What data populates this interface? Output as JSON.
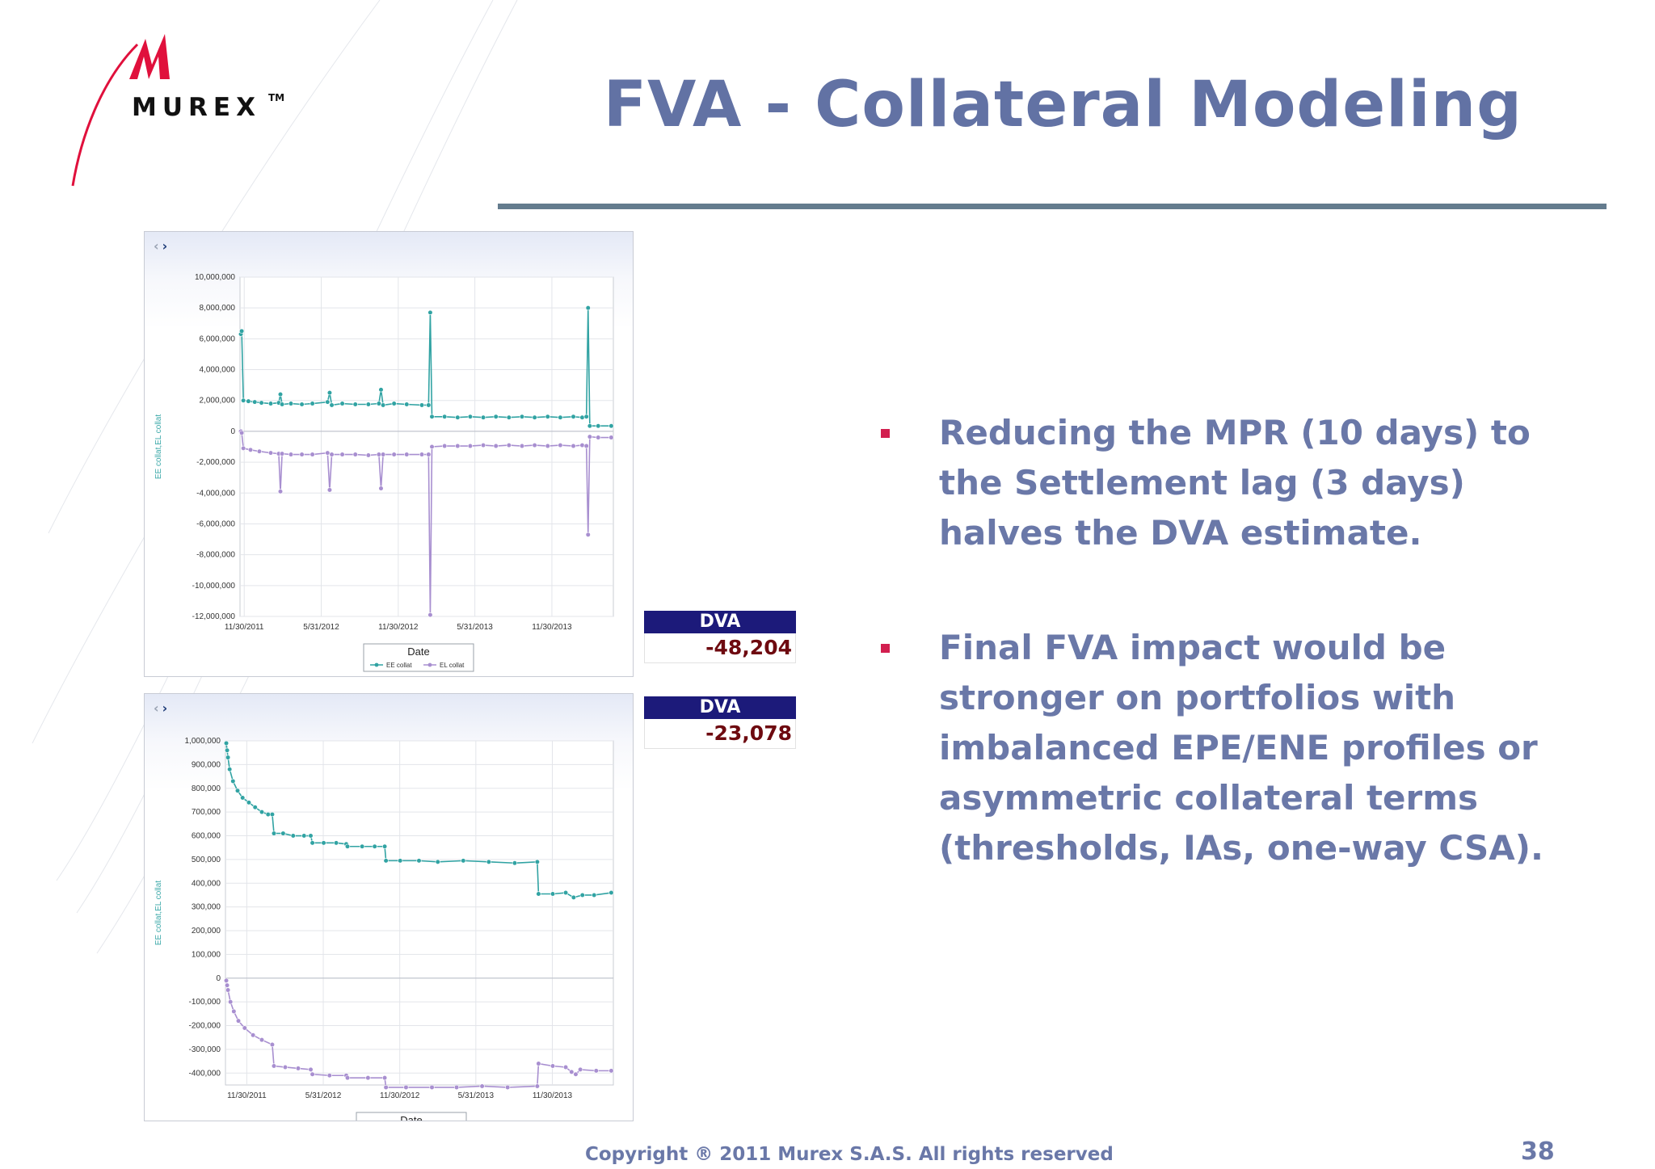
{
  "slide": {
    "title": "FVA - Collateral Modeling",
    "logo": {
      "text": "MUREX",
      "trademark": "TM"
    },
    "bullets": [
      "Reducing the MPR (10 days) to the Settlement lag (3 days) halves the DVA estimate.",
      "Final FVA impact would be stronger on portfolios with imbalanced EPE/ENE profiles or asymmetric collateral terms (thresholds, IAs, one-way CSA)."
    ],
    "footer": "Copyright ® 2011 Murex S.A.S. All rights reserved",
    "page_number": "38",
    "colors": {
      "title": "#6272a4",
      "bullet_marker": "#d21f4f",
      "ee_series": "#31a3a3",
      "el_series": "#a88fd0",
      "dva_header": "#1c1a7a"
    }
  },
  "dva": [
    {
      "label": "DVA",
      "value": "-48,204"
    },
    {
      "label": "DVA",
      "value": "-23,078"
    }
  ],
  "nav": {
    "prev_icon": "chevron-left-icon",
    "next_icon": "chevron-right-icon",
    "prev": "‹",
    "next": "›"
  },
  "chart_data": [
    {
      "type": "line",
      "xlabel": "Date",
      "ylabel": "EE collat,EL collat",
      "ylim": [
        -12000000,
        10000000
      ],
      "yticks": [
        10000000,
        8000000,
        6000000,
        4000000,
        2000000,
        0,
        -2000000,
        -4000000,
        -6000000,
        -8000000,
        -10000000,
        -12000000
      ],
      "ytick_labels": [
        "10,000,000",
        "8,000,000",
        "6,000,000",
        "4,000,000",
        "2,000,000",
        "0",
        "-2,000,000",
        "-4,000,000",
        "-6,000,000",
        "-8,000,000",
        "-10,000,000",
        "-12,000,000"
      ],
      "xlim": [
        "2011-11-20",
        "2014-04-25"
      ],
      "xticks": [
        "2011-11-30",
        "2012-05-31",
        "2012-11-30",
        "2013-05-31",
        "2013-11-30"
      ],
      "xtick_labels": [
        "11/30/2011",
        "5/31/2012",
        "11/30/2012",
        "5/31/2013",
        "11/30/2013"
      ],
      "grid": true,
      "legend_position": "bottom",
      "series": [
        {
          "name": "EE collat",
          "points": [
            [
              "2011-11-22",
              6300000
            ],
            [
              "2011-11-24",
              6500000
            ],
            [
              "2011-11-28",
              2000000
            ],
            [
              "2011-12-10",
              1950000
            ],
            [
              "2011-12-25",
              1900000
            ],
            [
              "2012-01-10",
              1850000
            ],
            [
              "2012-02-01",
              1800000
            ],
            [
              "2012-02-20",
              1850000
            ],
            [
              "2012-02-24",
              2400000
            ],
            [
              "2012-02-28",
              1750000
            ],
            [
              "2012-03-20",
              1800000
            ],
            [
              "2012-04-15",
              1750000
            ],
            [
              "2012-05-10",
              1800000
            ],
            [
              "2012-06-15",
              1900000
            ],
            [
              "2012-06-20",
              2500000
            ],
            [
              "2012-06-25",
              1700000
            ],
            [
              "2012-07-20",
              1800000
            ],
            [
              "2012-08-20",
              1750000
            ],
            [
              "2012-09-20",
              1750000
            ],
            [
              "2012-10-15",
              1800000
            ],
            [
              "2012-10-20",
              2700000
            ],
            [
              "2012-10-25",
              1700000
            ],
            [
              "2012-11-20",
              1800000
            ],
            [
              "2012-12-20",
              1750000
            ],
            [
              "2013-01-25",
              1700000
            ],
            [
              "2013-02-10",
              1700000
            ],
            [
              "2013-02-14",
              7700000
            ],
            [
              "2013-02-18",
              950000
            ],
            [
              "2013-03-20",
              950000
            ],
            [
              "2013-04-20",
              900000
            ],
            [
              "2013-05-20",
              950000
            ],
            [
              "2013-06-20",
              900000
            ],
            [
              "2013-07-20",
              950000
            ],
            [
              "2013-08-20",
              900000
            ],
            [
              "2013-09-20",
              950000
            ],
            [
              "2013-10-20",
              900000
            ],
            [
              "2013-11-20",
              950000
            ],
            [
              "2013-12-20",
              900000
            ],
            [
              "2014-01-20",
              950000
            ],
            [
              "2014-02-10",
              900000
            ],
            [
              "2014-02-20",
              950000
            ],
            [
              "2014-02-24",
              8000000
            ],
            [
              "2014-02-28",
              350000
            ],
            [
              "2014-03-20",
              350000
            ],
            [
              "2014-04-20",
              350000
            ]
          ]
        },
        {
          "name": "EL collat",
          "points": [
            [
              "2011-11-22",
              0
            ],
            [
              "2011-11-24",
              -100000
            ],
            [
              "2011-11-28",
              -1100000
            ],
            [
              "2011-12-15",
              -1200000
            ],
            [
              "2012-01-05",
              -1300000
            ],
            [
              "2012-02-01",
              -1400000
            ],
            [
              "2012-02-20",
              -1450000
            ],
            [
              "2012-02-24",
              -3900000
            ],
            [
              "2012-02-28",
              -1450000
            ],
            [
              "2012-03-20",
              -1500000
            ],
            [
              "2012-04-15",
              -1500000
            ],
            [
              "2012-05-10",
              -1500000
            ],
            [
              "2012-06-15",
              -1400000
            ],
            [
              "2012-06-20",
              -3800000
            ],
            [
              "2012-06-25",
              -1500000
            ],
            [
              "2012-07-20",
              -1500000
            ],
            [
              "2012-08-20",
              -1500000
            ],
            [
              "2012-09-20",
              -1550000
            ],
            [
              "2012-10-15",
              -1500000
            ],
            [
              "2012-10-20",
              -3700000
            ],
            [
              "2012-10-25",
              -1500000
            ],
            [
              "2012-11-20",
              -1500000
            ],
            [
              "2012-12-20",
              -1500000
            ],
            [
              "2013-01-25",
              -1500000
            ],
            [
              "2013-02-10",
              -1500000
            ],
            [
              "2013-02-14",
              -11900000
            ],
            [
              "2013-02-18",
              -1000000
            ],
            [
              "2013-03-20",
              -950000
            ],
            [
              "2013-04-20",
              -950000
            ],
            [
              "2013-05-20",
              -950000
            ],
            [
              "2013-06-20",
              -900000
            ],
            [
              "2013-07-20",
              -950000
            ],
            [
              "2013-08-20",
              -900000
            ],
            [
              "2013-09-20",
              -950000
            ],
            [
              "2013-10-20",
              -900000
            ],
            [
              "2013-11-20",
              -950000
            ],
            [
              "2013-12-20",
              -900000
            ],
            [
              "2014-01-20",
              -950000
            ],
            [
              "2014-02-10",
              -900000
            ],
            [
              "2014-02-20",
              -950000
            ],
            [
              "2014-02-24",
              -6700000
            ],
            [
              "2014-02-28",
              -350000
            ],
            [
              "2014-03-20",
              -400000
            ],
            [
              "2014-04-20",
              -400000
            ]
          ]
        }
      ]
    },
    {
      "type": "line",
      "xlabel": "Date",
      "ylabel": "EE collat,EL collat",
      "ylim": [
        -450000,
        1000000
      ],
      "yticks": [
        1000000,
        900000,
        800000,
        700000,
        600000,
        500000,
        400000,
        300000,
        200000,
        100000,
        0,
        -100000,
        -200000,
        -300000,
        -400000
      ],
      "ytick_labels": [
        "1,000,000",
        "900,000",
        "800,000",
        "700,000",
        "600,000",
        "500,000",
        "400,000",
        "300,000",
        "200,000",
        "100,000",
        "0",
        "-100,000",
        "-200,000",
        "-300,000",
        "-400,000"
      ],
      "xlim": [
        "2011-10-10",
        "2014-04-25"
      ],
      "xticks": [
        "2011-11-30",
        "2012-05-31",
        "2012-11-30",
        "2013-05-31",
        "2013-11-30"
      ],
      "xtick_labels": [
        "11/30/2011",
        "5/31/2012",
        "11/30/2012",
        "5/31/2013",
        "11/30/2013"
      ],
      "grid": true,
      "legend_position": "bottom",
      "series": [
        {
          "name": "EE collat",
          "points": [
            [
              "2011-10-12",
              990000
            ],
            [
              "2011-10-14",
              960000
            ],
            [
              "2011-10-16",
              930000
            ],
            [
              "2011-10-20",
              880000
            ],
            [
              "2011-10-28",
              830000
            ],
            [
              "2011-11-08",
              790000
            ],
            [
              "2011-11-20",
              760000
            ],
            [
              "2011-12-05",
              740000
            ],
            [
              "2011-12-20",
              720000
            ],
            [
              "2012-01-05",
              700000
            ],
            [
              "2012-01-20",
              690000
            ],
            [
              "2012-01-30",
              690000
            ],
            [
              "2012-02-03",
              610000
            ],
            [
              "2012-02-25",
              610000
            ],
            [
              "2012-03-20",
              600000
            ],
            [
              "2012-04-15",
              600000
            ],
            [
              "2012-05-01",
              600000
            ],
            [
              "2012-05-05",
              570000
            ],
            [
              "2012-06-01",
              570000
            ],
            [
              "2012-07-01",
              570000
            ],
            [
              "2012-07-25",
              565000
            ],
            [
              "2012-07-28",
              555000
            ],
            [
              "2012-09-01",
              555000
            ],
            [
              "2012-10-01",
              555000
            ],
            [
              "2012-10-25",
              555000
            ],
            [
              "2012-10-28",
              495000
            ],
            [
              "2012-12-01",
              495000
            ],
            [
              "2013-01-15",
              495000
            ],
            [
              "2013-03-01",
              490000
            ],
            [
              "2013-05-01",
              495000
            ],
            [
              "2013-07-01",
              490000
            ],
            [
              "2013-09-01",
              485000
            ],
            [
              "2013-10-25",
              490000
            ],
            [
              "2013-10-28",
              355000
            ],
            [
              "2013-12-01",
              355000
            ],
            [
              "2014-01-01",
              360000
            ],
            [
              "2014-01-20",
              340000
            ],
            [
              "2014-02-10",
              350000
            ],
            [
              "2014-03-10",
              350000
            ],
            [
              "2014-04-20",
              360000
            ]
          ]
        },
        {
          "name": "EL collat",
          "points": [
            [
              "2011-10-12",
              -10000
            ],
            [
              "2011-10-14",
              -30000
            ],
            [
              "2011-10-16",
              -50000
            ],
            [
              "2011-10-22",
              -100000
            ],
            [
              "2011-10-30",
              -140000
            ],
            [
              "2011-11-10",
              -180000
            ],
            [
              "2011-11-25",
              -210000
            ],
            [
              "2011-12-15",
              -240000
            ],
            [
              "2012-01-05",
              -260000
            ],
            [
              "2012-01-30",
              -280000
            ],
            [
              "2012-02-03",
              -370000
            ],
            [
              "2012-03-01",
              -375000
            ],
            [
              "2012-04-01",
              -380000
            ],
            [
              "2012-05-01",
              -385000
            ],
            [
              "2012-05-05",
              -405000
            ],
            [
              "2012-06-15",
              -410000
            ],
            [
              "2012-07-25",
              -410000
            ],
            [
              "2012-07-28",
              -420000
            ],
            [
              "2012-09-15",
              -420000
            ],
            [
              "2012-10-25",
              -420000
            ],
            [
              "2012-10-28",
              -460000
            ],
            [
              "2012-12-15",
              -460000
            ],
            [
              "2013-02-15",
              -460000
            ],
            [
              "2013-04-15",
              -460000
            ],
            [
              "2013-06-15",
              -455000
            ],
            [
              "2013-08-15",
              -460000
            ],
            [
              "2013-10-25",
              -455000
            ],
            [
              "2013-10-28",
              -360000
            ],
            [
              "2013-12-01",
              -370000
            ],
            [
              "2014-01-01",
              -375000
            ],
            [
              "2014-01-15",
              -395000
            ],
            [
              "2014-01-25",
              -405000
            ],
            [
              "2014-02-05",
              -385000
            ],
            [
              "2014-03-15",
              -390000
            ],
            [
              "2014-04-20",
              -390000
            ]
          ]
        }
      ]
    }
  ]
}
